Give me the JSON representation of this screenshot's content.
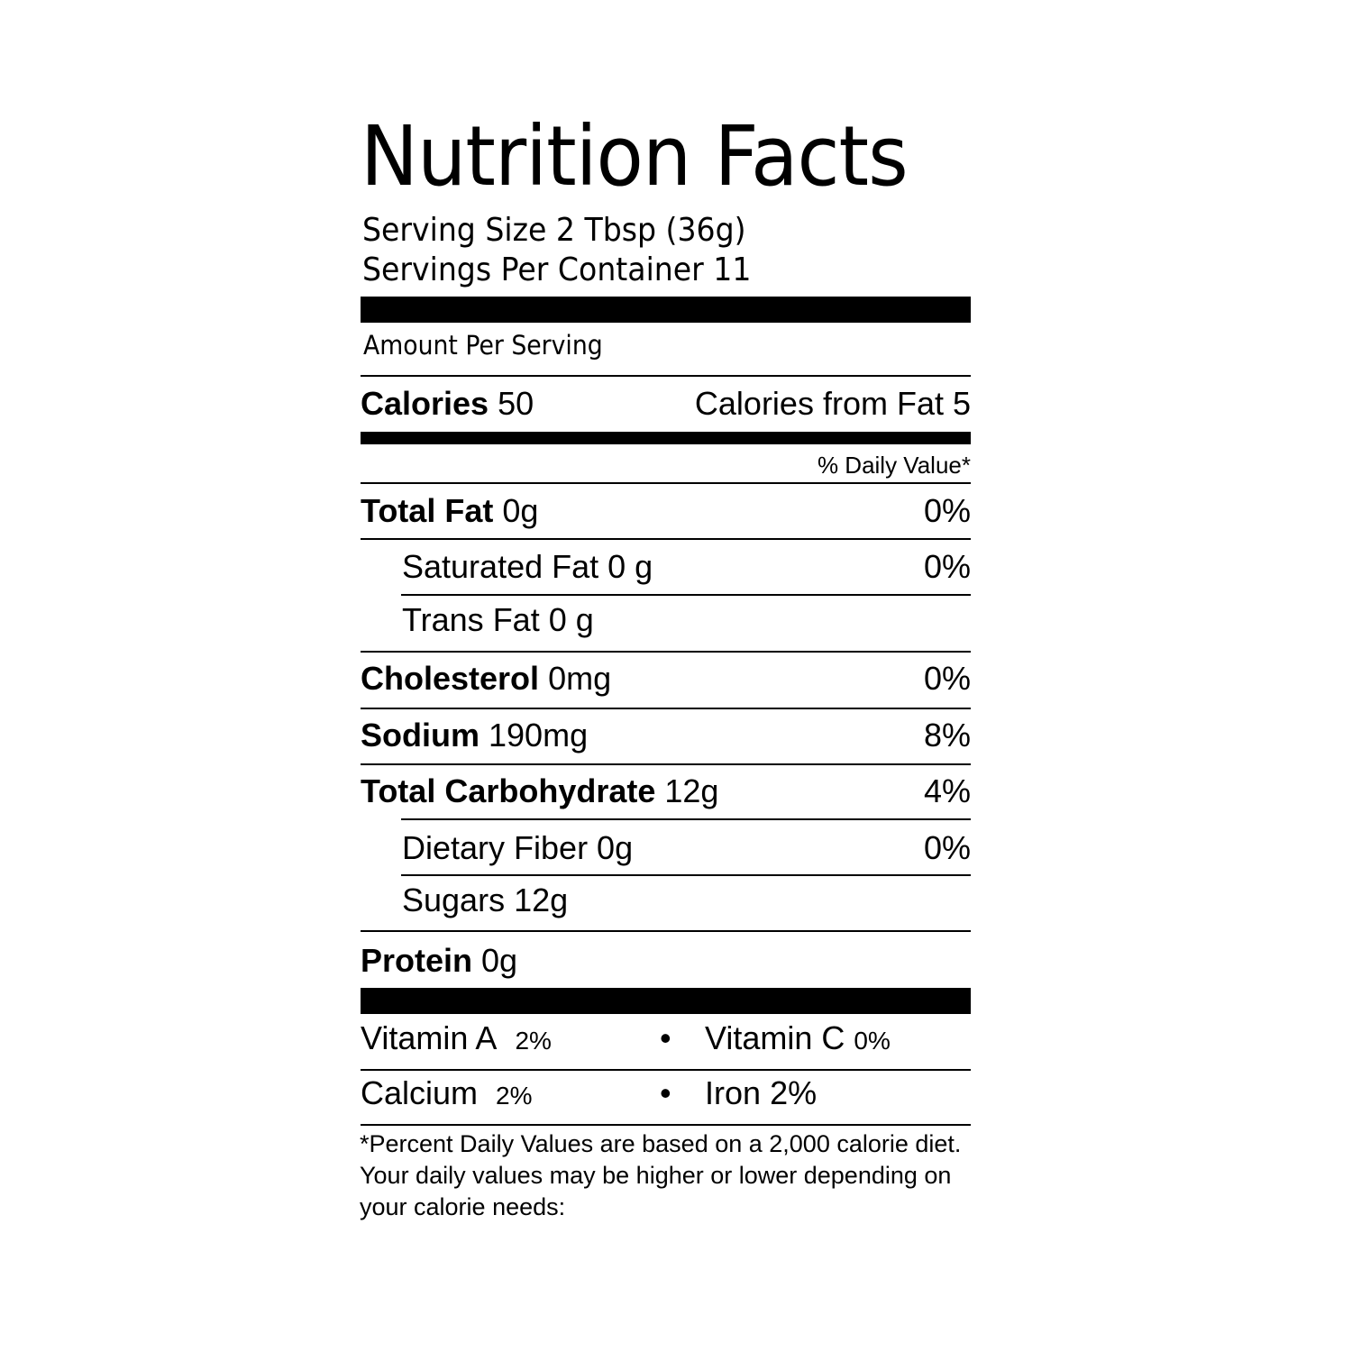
{
  "title": "Nutrition Facts",
  "serving_size": "Serving Size 2 Tbsp (36g)",
  "servings_per_container": "Servings Per Container 11",
  "amount_per_serving": "Amount Per Serving",
  "calories": {
    "label": "Calories",
    "value": "50",
    "from_fat": "Calories from Fat 5"
  },
  "daily_value_header": "% Daily Value*",
  "nutrients": [
    {
      "label": "Total Fat",
      "amount": "0g",
      "dv": "0%"
    },
    {
      "label": "Saturated Fat 0 g",
      "amount": "",
      "dv": "0%"
    },
    {
      "label": "Trans Fat 0 g",
      "amount": "",
      "dv": ""
    },
    {
      "label": "Cholesterol",
      "amount": "0mg",
      "dv": "0%"
    },
    {
      "label": "Sodium",
      "amount": "190mg",
      "dv": "8%"
    },
    {
      "label": "Total Carbohydrate",
      "amount": "12g",
      "dv": "4%"
    },
    {
      "label": "Dietary Fiber 0g",
      "amount": "",
      "dv": "0%"
    },
    {
      "label": "Sugars 12g",
      "amount": "",
      "dv": ""
    },
    {
      "label": "Protein",
      "amount": "0g",
      "dv": ""
    }
  ],
  "vitamins": [
    {
      "label": "Vitamin A",
      "value": "2%"
    },
    {
      "label": "Vitamin C",
      "value": "0%"
    },
    {
      "label": "Calcium",
      "value": "2%"
    },
    {
      "label": "Iron",
      "value": "2%"
    }
  ],
  "bullet": "•",
  "footnote": "*Percent Daily Values are based on a 2,000 calorie diet.  Your daily values may be higher or lower depending on your calorie needs:"
}
